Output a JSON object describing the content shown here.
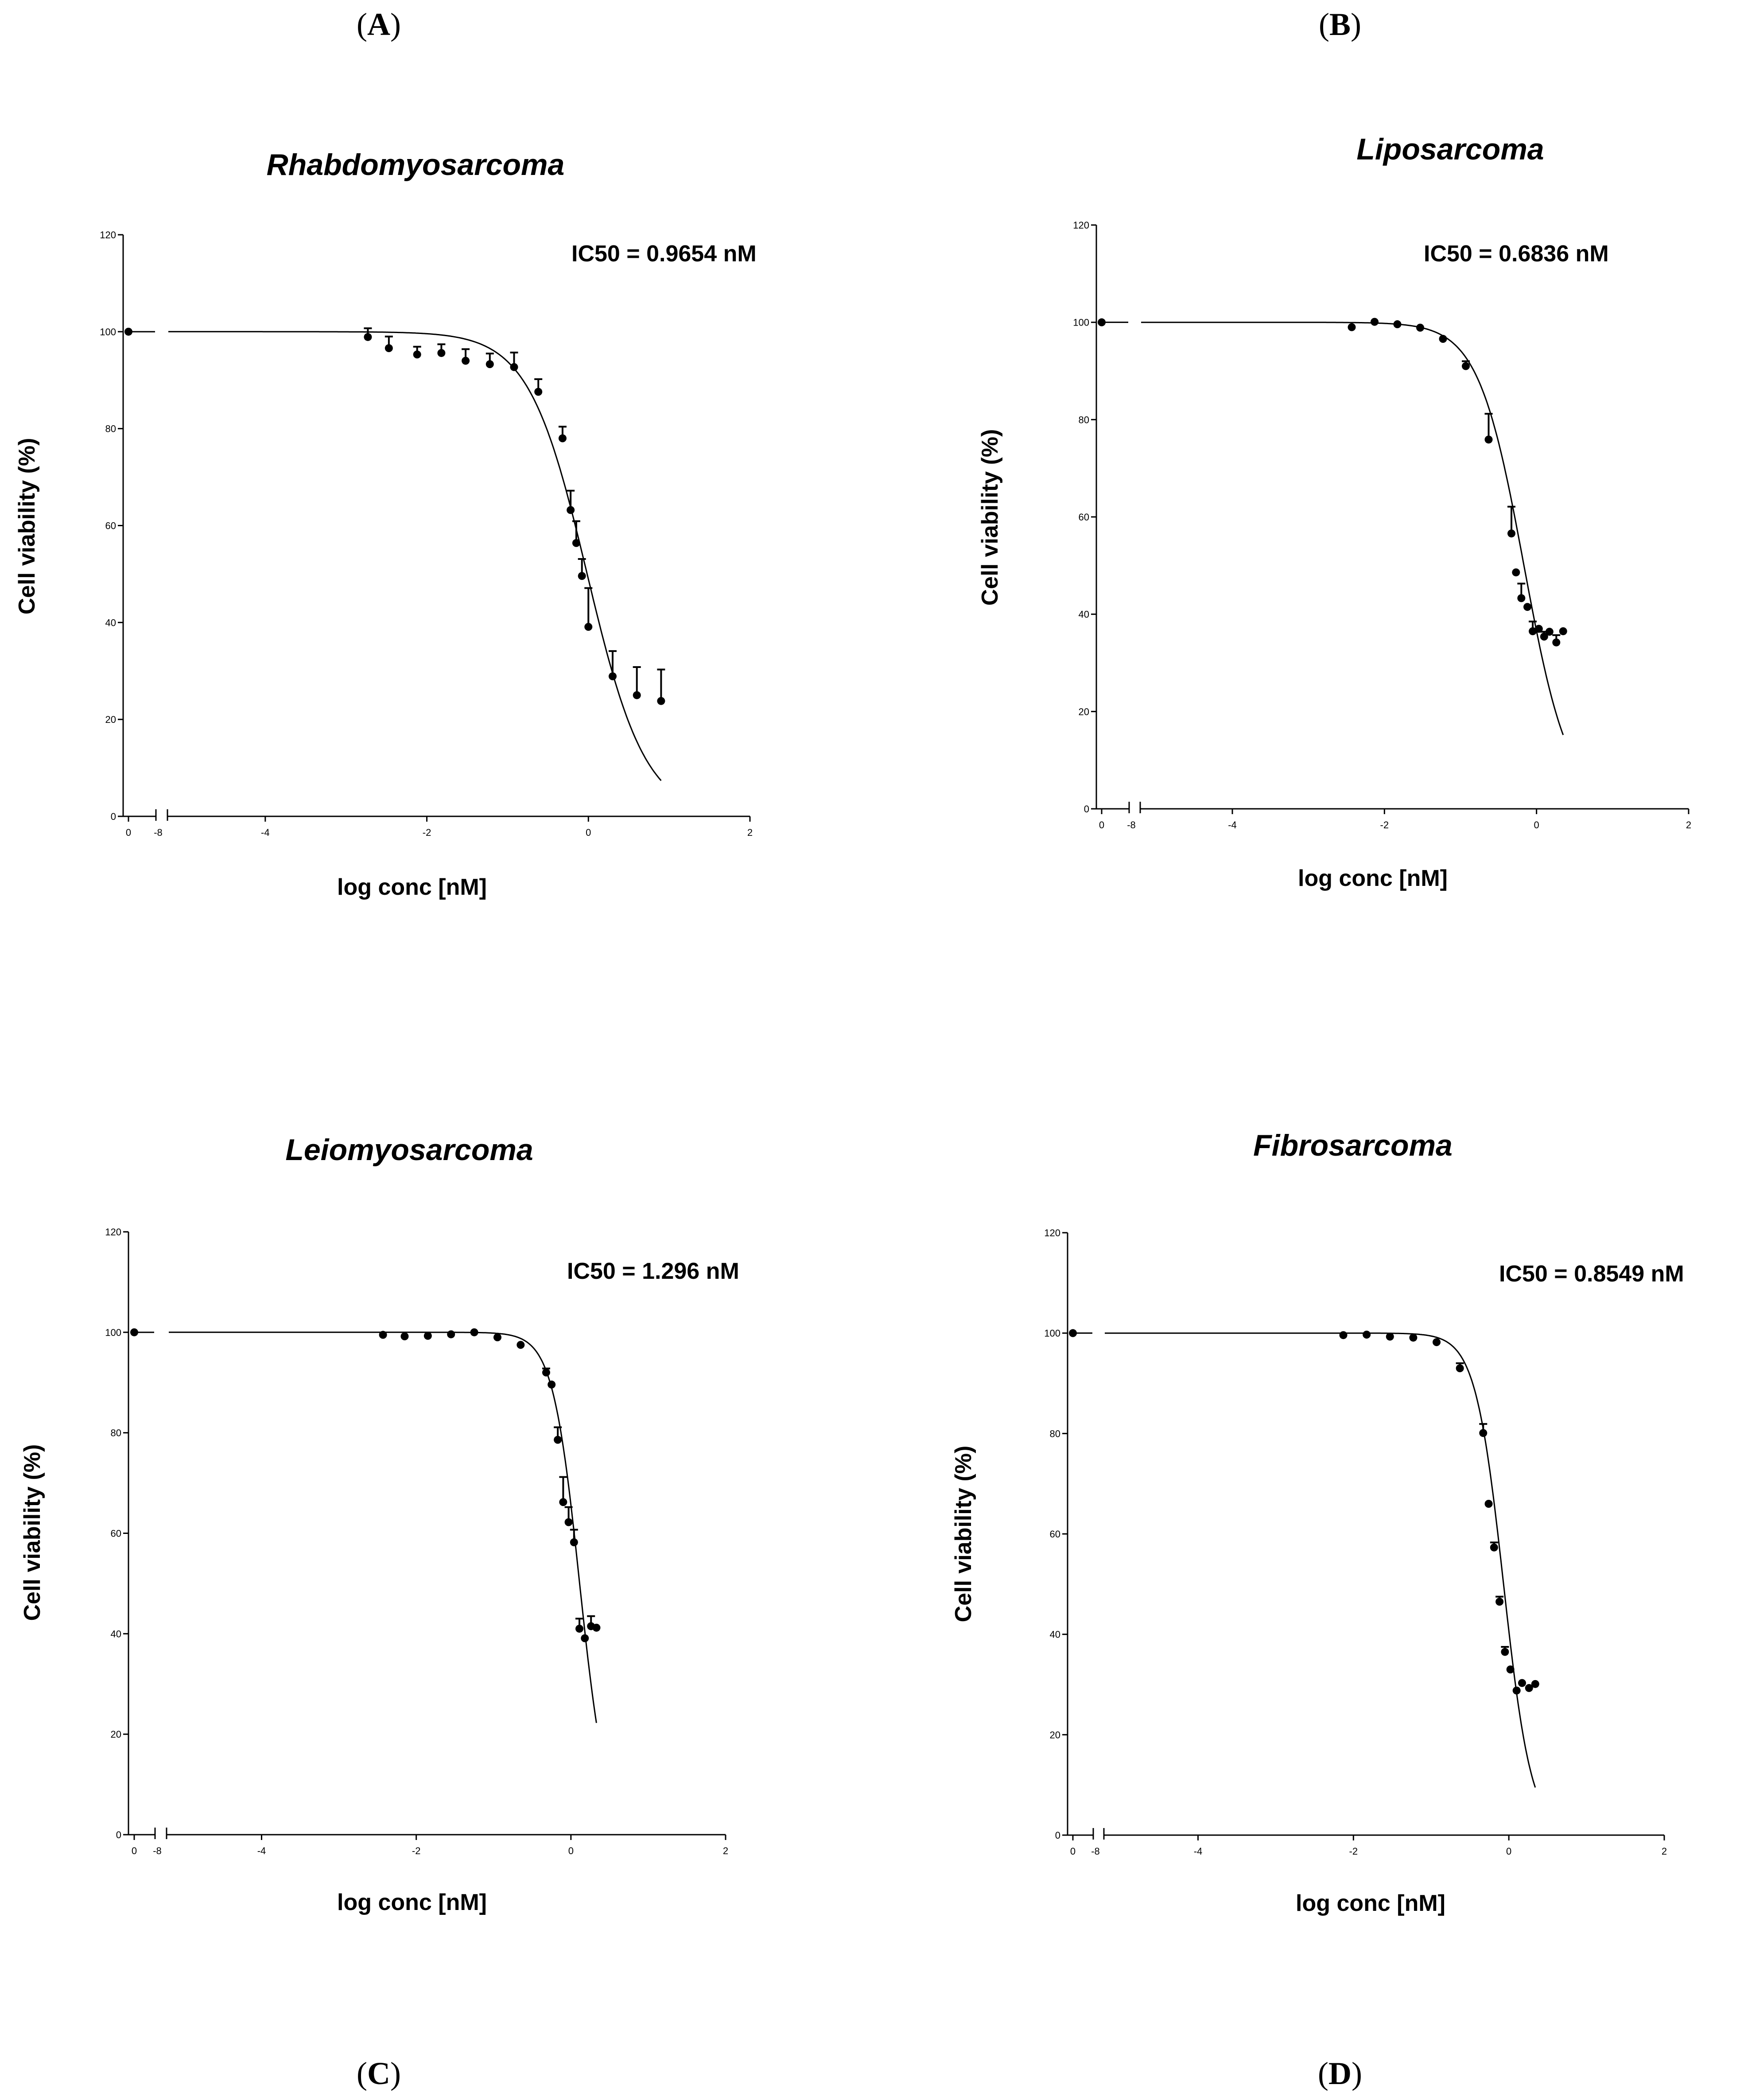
{
  "panel_labels": [
    "A",
    "B",
    "C",
    "D"
  ],
  "chart_data": [
    {
      "type": "scatter",
      "title": "Rhabdomyosarcoma",
      "annotation": "IC50 = 0.9654 nM",
      "xlabel": "log conc [nM]",
      "ylabel": "Cell viability (%)",
      "yticks": [
        "0",
        "20",
        "40",
        "60",
        "80",
        "100",
        "120"
      ],
      "ylim": [
        0,
        120
      ],
      "xlim": [
        -5.2,
        2
      ],
      "xticks_main": [
        "-4",
        "-2",
        "0",
        "2"
      ],
      "xticks_break": [
        "0",
        "-8"
      ],
      "control_value": 100,
      "fit": {
        "top": 100,
        "bottom": 0,
        "log_ic50": -0.0153,
        "hill": 1.2
      },
      "points": [
        {
          "x": -2.73,
          "y": 98.9,
          "err": 1.8
        },
        {
          "x": -2.47,
          "y": 96.6,
          "err": 2.4
        },
        {
          "x": -2.12,
          "y": 95.3,
          "err": 1.6
        },
        {
          "x": -1.82,
          "y": 95.6,
          "err": 1.8
        },
        {
          "x": -1.52,
          "y": 94.0,
          "err": 2.4
        },
        {
          "x": -1.22,
          "y": 93.3,
          "err": 2.2
        },
        {
          "x": -0.92,
          "y": 92.7,
          "err": 3.0
        },
        {
          "x": -0.62,
          "y": 87.6,
          "err": 2.6
        },
        {
          "x": -0.32,
          "y": 78.0,
          "err": 2.4
        },
        {
          "x": -0.22,
          "y": 63.2,
          "err": 4.0
        },
        {
          "x": -0.15,
          "y": 56.4,
          "err": 4.5
        },
        {
          "x": -0.08,
          "y": 49.6,
          "err": 3.5
        },
        {
          "x": 0.0,
          "y": 39.1,
          "err": 8.0
        },
        {
          "x": 0.3,
          "y": 28.9,
          "err": 5.2
        },
        {
          "x": 0.6,
          "y": 25.0,
          "err": 5.8
        },
        {
          "x": 0.9,
          "y": 23.8,
          "err": 6.5
        }
      ]
    },
    {
      "type": "scatter",
      "title": "Liposarcoma",
      "annotation": "IC50 = 0.6836 nM",
      "xlabel": "log conc [nM]",
      "ylabel": "Cell viability (%)",
      "yticks": [
        "0",
        "20",
        "40",
        "60",
        "80",
        "100",
        "120"
      ],
      "ylim": [
        0,
        120
      ],
      "xlim": [
        -5.2,
        2
      ],
      "xticks_main": [
        "-4",
        "-2",
        "0",
        "2"
      ],
      "xticks_break": [
        "0",
        "-8"
      ],
      "control_value": 100,
      "fit": {
        "top": 100,
        "bottom": 0,
        "log_ic50": -0.1652,
        "hill": 1.45
      },
      "points": [
        {
          "x": -2.43,
          "y": 99.0,
          "err": 0.5
        },
        {
          "x": -2.13,
          "y": 100.1,
          "err": 0.5
        },
        {
          "x": -1.83,
          "y": 99.6,
          "err": 0.5
        },
        {
          "x": -1.53,
          "y": 98.9,
          "err": 0.5
        },
        {
          "x": -1.23,
          "y": 96.6,
          "err": 0.5
        },
        {
          "x": -0.93,
          "y": 91.0,
          "err": 1.0
        },
        {
          "x": -0.63,
          "y": 75.9,
          "err": 5.3
        },
        {
          "x": -0.33,
          "y": 56.6,
          "err": 5.5
        },
        {
          "x": -0.27,
          "y": 48.6,
          "err": 0.5
        },
        {
          "x": -0.2,
          "y": 43.3,
          "err": 3.0
        },
        {
          "x": -0.12,
          "y": 41.5,
          "err": 0.5
        },
        {
          "x": -0.05,
          "y": 36.5,
          "err": 2.0
        },
        {
          "x": 0.03,
          "y": 37.0,
          "err": 0.5
        },
        {
          "x": 0.1,
          "y": 35.4,
          "err": 1.0
        },
        {
          "x": 0.17,
          "y": 36.4,
          "err": 0.5
        },
        {
          "x": 0.26,
          "y": 34.2,
          "err": 1.5
        },
        {
          "x": 0.35,
          "y": 36.5,
          "err": 0.5
        }
      ]
    },
    {
      "type": "scatter",
      "title": "Leiomyosarcoma",
      "annotation": "IC50 = 1.296 nM",
      "xlabel": "log conc [nM]",
      "ylabel": "Cell viability (%)",
      "yticks": [
        "0",
        "20",
        "40",
        "60",
        "80",
        "100",
        "120"
      ],
      "ylim": [
        0,
        120
      ],
      "xlim": [
        -5.2,
        2
      ],
      "xticks_main": [
        "-4",
        "-2",
        "0",
        "2"
      ],
      "xticks_break": [
        "0",
        "-8"
      ],
      "control_value": 100,
      "fit": {
        "top": 100,
        "bottom": 0,
        "log_ic50": 0.1126,
        "hill": 2.5
      },
      "points": [
        {
          "x": -2.43,
          "y": 99.5,
          "err": 0.5
        },
        {
          "x": -2.15,
          "y": 99.2,
          "err": 0.5
        },
        {
          "x": -1.85,
          "y": 99.3,
          "err": 0.5
        },
        {
          "x": -1.55,
          "y": 99.6,
          "err": 0.5
        },
        {
          "x": -1.25,
          "y": 100.0,
          "err": 0.5
        },
        {
          "x": -0.95,
          "y": 99.0,
          "err": 0.5
        },
        {
          "x": -0.65,
          "y": 97.5,
          "err": 0.5
        },
        {
          "x": -0.32,
          "y": 92.0,
          "err": 0.8
        },
        {
          "x": -0.25,
          "y": 89.6,
          "err": 0.5
        },
        {
          "x": -0.17,
          "y": 78.6,
          "err": 2.5
        },
        {
          "x": -0.1,
          "y": 66.2,
          "err": 5.0
        },
        {
          "x": -0.03,
          "y": 62.2,
          "err": 3.0
        },
        {
          "x": 0.04,
          "y": 58.2,
          "err": 2.5
        },
        {
          "x": 0.11,
          "y": 41.0,
          "err": 2.0
        },
        {
          "x": 0.18,
          "y": 39.1,
          "err": 0.5
        },
        {
          "x": 0.26,
          "y": 41.5,
          "err": 2.0
        },
        {
          "x": 0.33,
          "y": 41.2,
          "err": 0.5
        }
      ]
    },
    {
      "type": "scatter",
      "title": "Fibrosarcoma",
      "annotation": "IC50 = 0.8549 nM",
      "xlabel": "log conc [nM]",
      "ylabel": "Cell viability (%)",
      "yticks": [
        "0",
        "20",
        "40",
        "60",
        "80",
        "100",
        "120"
      ],
      "ylim": [
        0,
        120
      ],
      "xlim": [
        -5.2,
        2
      ],
      "xticks_main": [
        "-4",
        "-2",
        "0",
        "2"
      ],
      "xticks_break": [
        "0",
        "-8"
      ],
      "control_value": 100,
      "fit": {
        "top": 100,
        "bottom": 0,
        "log_ic50": -0.0681,
        "hill": 2.4
      },
      "points": [
        {
          "x": -2.13,
          "y": 99.6,
          "err": 0.5
        },
        {
          "x": -1.83,
          "y": 99.7,
          "err": 0.5
        },
        {
          "x": -1.53,
          "y": 99.3,
          "err": 0.5
        },
        {
          "x": -1.23,
          "y": 99.1,
          "err": 0.5
        },
        {
          "x": -0.93,
          "y": 98.2,
          "err": 0.5
        },
        {
          "x": -0.63,
          "y": 93.0,
          "err": 1.0
        },
        {
          "x": -0.33,
          "y": 80.1,
          "err": 1.8
        },
        {
          "x": -0.26,
          "y": 66.0,
          "err": 0.5
        },
        {
          "x": -0.19,
          "y": 57.3,
          "err": 1.0
        },
        {
          "x": -0.12,
          "y": 46.5,
          "err": 1.0
        },
        {
          "x": -0.05,
          "y": 36.5,
          "err": 1.0
        },
        {
          "x": 0.02,
          "y": 33.0,
          "err": 0.5
        },
        {
          "x": 0.1,
          "y": 28.8,
          "err": 0.5
        },
        {
          "x": 0.17,
          "y": 30.3,
          "err": 0.5
        },
        {
          "x": 0.26,
          "y": 29.3,
          "err": 0.5
        },
        {
          "x": 0.34,
          "y": 30.1,
          "err": 0.5
        }
      ]
    }
  ]
}
